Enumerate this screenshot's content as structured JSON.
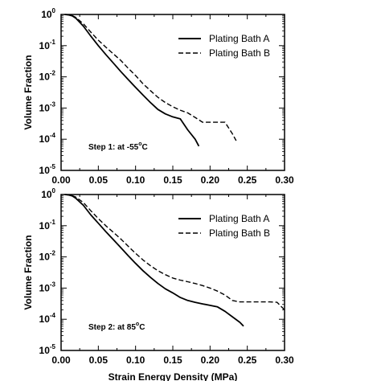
{
  "chart_data": [
    {
      "type": "line",
      "panel": "top",
      "xlabel": "",
      "ylabel": "Volume Fraction",
      "xlim": [
        0.0,
        0.3
      ],
      "ylim": [
        1e-05,
        1
      ],
      "yscale": "log",
      "x_tick_labels": [
        "0.00",
        "0.05",
        "0.10",
        "0.15",
        "0.20",
        "0.25",
        "0.30"
      ],
      "y_tick_labels": [
        {
          "base": "10",
          "exp": "0"
        },
        {
          "base": "10",
          "exp": "-1"
        },
        {
          "base": "10",
          "exp": "-2"
        },
        {
          "base": "10",
          "exp": "-3"
        },
        {
          "base": "10",
          "exp": "-4"
        },
        {
          "base": "10",
          "exp": "-5"
        }
      ],
      "annotation": {
        "text": "Step 1: at -55",
        "sup": "o",
        "tail": "C"
      },
      "legend_position": "top-right",
      "series": [
        {
          "name": "Plating Bath A",
          "style": "solid",
          "x": [
            0.005,
            0.01,
            0.015,
            0.02,
            0.03,
            0.04,
            0.05,
            0.06,
            0.07,
            0.08,
            0.09,
            0.1,
            0.11,
            0.12,
            0.13,
            0.14,
            0.15,
            0.16,
            0.17,
            0.18,
            0.185
          ],
          "y": [
            1.0,
            0.97,
            0.9,
            0.75,
            0.42,
            0.2,
            0.1,
            0.052,
            0.028,
            0.015,
            0.0082,
            0.0046,
            0.0026,
            0.0015,
            0.0009,
            0.00065,
            0.00052,
            0.00045,
            0.0002,
            0.0001,
            6e-05
          ]
        },
        {
          "name": "Plating Bath B",
          "style": "dashed",
          "x": [
            0.005,
            0.01,
            0.015,
            0.02,
            0.03,
            0.04,
            0.05,
            0.06,
            0.07,
            0.08,
            0.09,
            0.1,
            0.11,
            0.12,
            0.13,
            0.14,
            0.15,
            0.16,
            0.17,
            0.18,
            0.19,
            0.2,
            0.21,
            0.22,
            0.23,
            0.235
          ],
          "y": [
            1.0,
            0.97,
            0.92,
            0.8,
            0.5,
            0.27,
            0.15,
            0.09,
            0.055,
            0.034,
            0.019,
            0.011,
            0.006,
            0.0036,
            0.0022,
            0.0015,
            0.0011,
            0.00085,
            0.0007,
            0.0005,
            0.00035,
            0.00035,
            0.00035,
            0.00035,
            0.00015,
            9e-05
          ]
        }
      ]
    },
    {
      "type": "line",
      "panel": "bottom",
      "xlabel": "Strain Energy Density (MPa)",
      "ylabel": "Volume Fraction",
      "xlim": [
        0.0,
        0.3
      ],
      "ylim": [
        1e-05,
        1
      ],
      "yscale": "log",
      "x_tick_labels": [
        "0.00",
        "0.05",
        "0.10",
        "0.15",
        "0.20",
        "0.25",
        "0.30"
      ],
      "y_tick_labels": [
        {
          "base": "10",
          "exp": "0"
        },
        {
          "base": "10",
          "exp": "-1"
        },
        {
          "base": "10",
          "exp": "-2"
        },
        {
          "base": "10",
          "exp": "-3"
        },
        {
          "base": "10",
          "exp": "-4"
        },
        {
          "base": "10",
          "exp": "-5"
        }
      ],
      "annotation": {
        "text": "Step 2: at 85",
        "sup": "o",
        "tail": "C"
      },
      "legend_position": "top-right",
      "series": [
        {
          "name": "Plating Bath A",
          "style": "solid",
          "x": [
            0.005,
            0.01,
            0.015,
            0.02,
            0.03,
            0.04,
            0.05,
            0.06,
            0.07,
            0.08,
            0.09,
            0.1,
            0.11,
            0.12,
            0.13,
            0.14,
            0.15,
            0.16,
            0.17,
            0.18,
            0.19,
            0.2,
            0.21,
            0.22,
            0.23,
            0.24,
            0.245
          ],
          "y": [
            1.0,
            0.97,
            0.9,
            0.75,
            0.45,
            0.22,
            0.12,
            0.065,
            0.036,
            0.02,
            0.011,
            0.0062,
            0.0036,
            0.0022,
            0.0014,
            0.00095,
            0.0007,
            0.0005,
            0.0004,
            0.00035,
            0.00031,
            0.00028,
            0.00025,
            0.00018,
            0.00012,
            8e-05,
            6e-05
          ]
        },
        {
          "name": "Plating Bath B",
          "style": "dashed",
          "x": [
            0.005,
            0.01,
            0.015,
            0.02,
            0.03,
            0.04,
            0.05,
            0.06,
            0.07,
            0.08,
            0.09,
            0.1,
            0.11,
            0.12,
            0.13,
            0.14,
            0.15,
            0.16,
            0.17,
            0.18,
            0.19,
            0.2,
            0.21,
            0.22,
            0.23,
            0.24,
            0.25,
            0.26,
            0.27,
            0.28,
            0.29,
            0.3
          ],
          "y": [
            1.0,
            0.97,
            0.92,
            0.82,
            0.55,
            0.3,
            0.17,
            0.1,
            0.062,
            0.038,
            0.022,
            0.013,
            0.008,
            0.0052,
            0.0036,
            0.0027,
            0.0021,
            0.0018,
            0.0016,
            0.0014,
            0.0012,
            0.001,
            0.0008,
            0.0006,
            0.0004,
            0.00036,
            0.00036,
            0.00036,
            0.00036,
            0.00036,
            0.00035,
            0.0002
          ]
        }
      ]
    }
  ]
}
